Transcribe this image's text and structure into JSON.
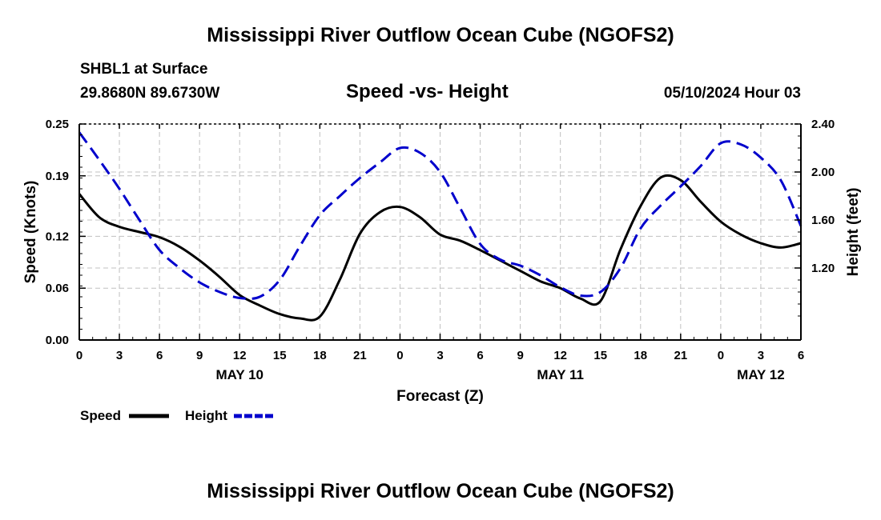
{
  "page": {
    "title_top": "Mississippi River Outflow Ocean Cube (NGOFS2)",
    "title_bottom": "Mississippi River Outflow Ocean Cube (NGOFS2)",
    "station": "SHBL1 at Surface",
    "coordinates": "29.8680N  89.6730W",
    "subtitle": "Speed -vs- Height",
    "date_info": "05/10/2024 Hour 03"
  },
  "legend": {
    "speed_label": "Speed",
    "height_label": "Height"
  },
  "chart_data": {
    "type": "line",
    "xlabel": "Forecast (Z)",
    "ylabel_left": "Speed (Knots)",
    "ylabel_right": "Height (feet)",
    "xlim": [
      0,
      54
    ],
    "ylim_left": [
      0,
      0.25
    ],
    "ylim_right": [
      0.6,
      2.4
    ],
    "x_ticks": [
      0,
      3,
      6,
      9,
      12,
      15,
      18,
      21,
      24,
      27,
      30,
      33,
      36,
      39,
      42,
      45,
      48,
      51,
      54
    ],
    "x_tick_labels": [
      "0",
      "3",
      "6",
      "9",
      "12",
      "15",
      "18",
      "21",
      "0",
      "3",
      "6",
      "9",
      "12",
      "15",
      "18",
      "21",
      "0",
      "3",
      "6"
    ],
    "date_labels": [
      {
        "x": 12,
        "label": "MAY 10"
      },
      {
        "x": 36,
        "label": "MAY 11"
      },
      {
        "x": 51,
        "label": "MAY 12"
      }
    ],
    "y_left_ticks": [
      0,
      0.06,
      0.12,
      0.19,
      0.25
    ],
    "y_left_tick_labels": [
      "0.00",
      "0.06",
      "0.12",
      "0.19",
      "0.25"
    ],
    "y_right_ticks": [
      1.2,
      1.6,
      2.0,
      2.4
    ],
    "y_right_tick_labels": [
      "1.20",
      "1.60",
      "2.00",
      "2.40"
    ],
    "grid": true,
    "colors": {
      "speed": "#000000",
      "height": "#0000cc",
      "grid": "#c0c0c0"
    },
    "series": [
      {
        "name": "Speed",
        "axis": "left",
        "style": "solid",
        "x": [
          0,
          1.5,
          3,
          4.5,
          6,
          7.5,
          9,
          10.5,
          12,
          13.5,
          15,
          16.5,
          18,
          19.5,
          21,
          22.5,
          24,
          25.5,
          27,
          28.5,
          30,
          31.5,
          33,
          34.5,
          36,
          37.5,
          39,
          40.5,
          42,
          43.5,
          45,
          46.5,
          48,
          49.5,
          51,
          52.5,
          54
        ],
        "values": [
          0.169,
          0.142,
          0.131,
          0.125,
          0.119,
          0.108,
          0.092,
          0.073,
          0.052,
          0.04,
          0.03,
          0.025,
          0.027,
          0.07,
          0.123,
          0.148,
          0.154,
          0.142,
          0.122,
          0.115,
          0.104,
          0.092,
          0.08,
          0.068,
          0.06,
          0.048,
          0.045,
          0.105,
          0.155,
          0.188,
          0.185,
          0.16,
          0.137,
          0.122,
          0.112,
          0.107,
          0.112
        ]
      },
      {
        "name": "Height",
        "axis": "right",
        "style": "dashed",
        "x": [
          0,
          1.5,
          3,
          4.5,
          6,
          7.5,
          9,
          10.5,
          12,
          13.5,
          15,
          16.5,
          18,
          19.5,
          21,
          22.5,
          24,
          25.5,
          27,
          28.5,
          30,
          31.5,
          33,
          34.5,
          36,
          37.5,
          39,
          40.5,
          42,
          43.5,
          45,
          46.5,
          48,
          49.5,
          51,
          52.5,
          54
        ],
        "values": [
          2.33,
          2.1,
          1.86,
          1.6,
          1.35,
          1.2,
          1.08,
          1.0,
          0.95,
          0.96,
          1.1,
          1.38,
          1.64,
          1.8,
          1.95,
          2.08,
          2.2,
          2.16,
          2.0,
          1.7,
          1.4,
          1.27,
          1.22,
          1.14,
          1.04,
          0.97,
          1.0,
          1.2,
          1.53,
          1.72,
          1.88,
          2.05,
          2.24,
          2.23,
          2.12,
          1.93,
          1.55
        ]
      }
    ]
  }
}
